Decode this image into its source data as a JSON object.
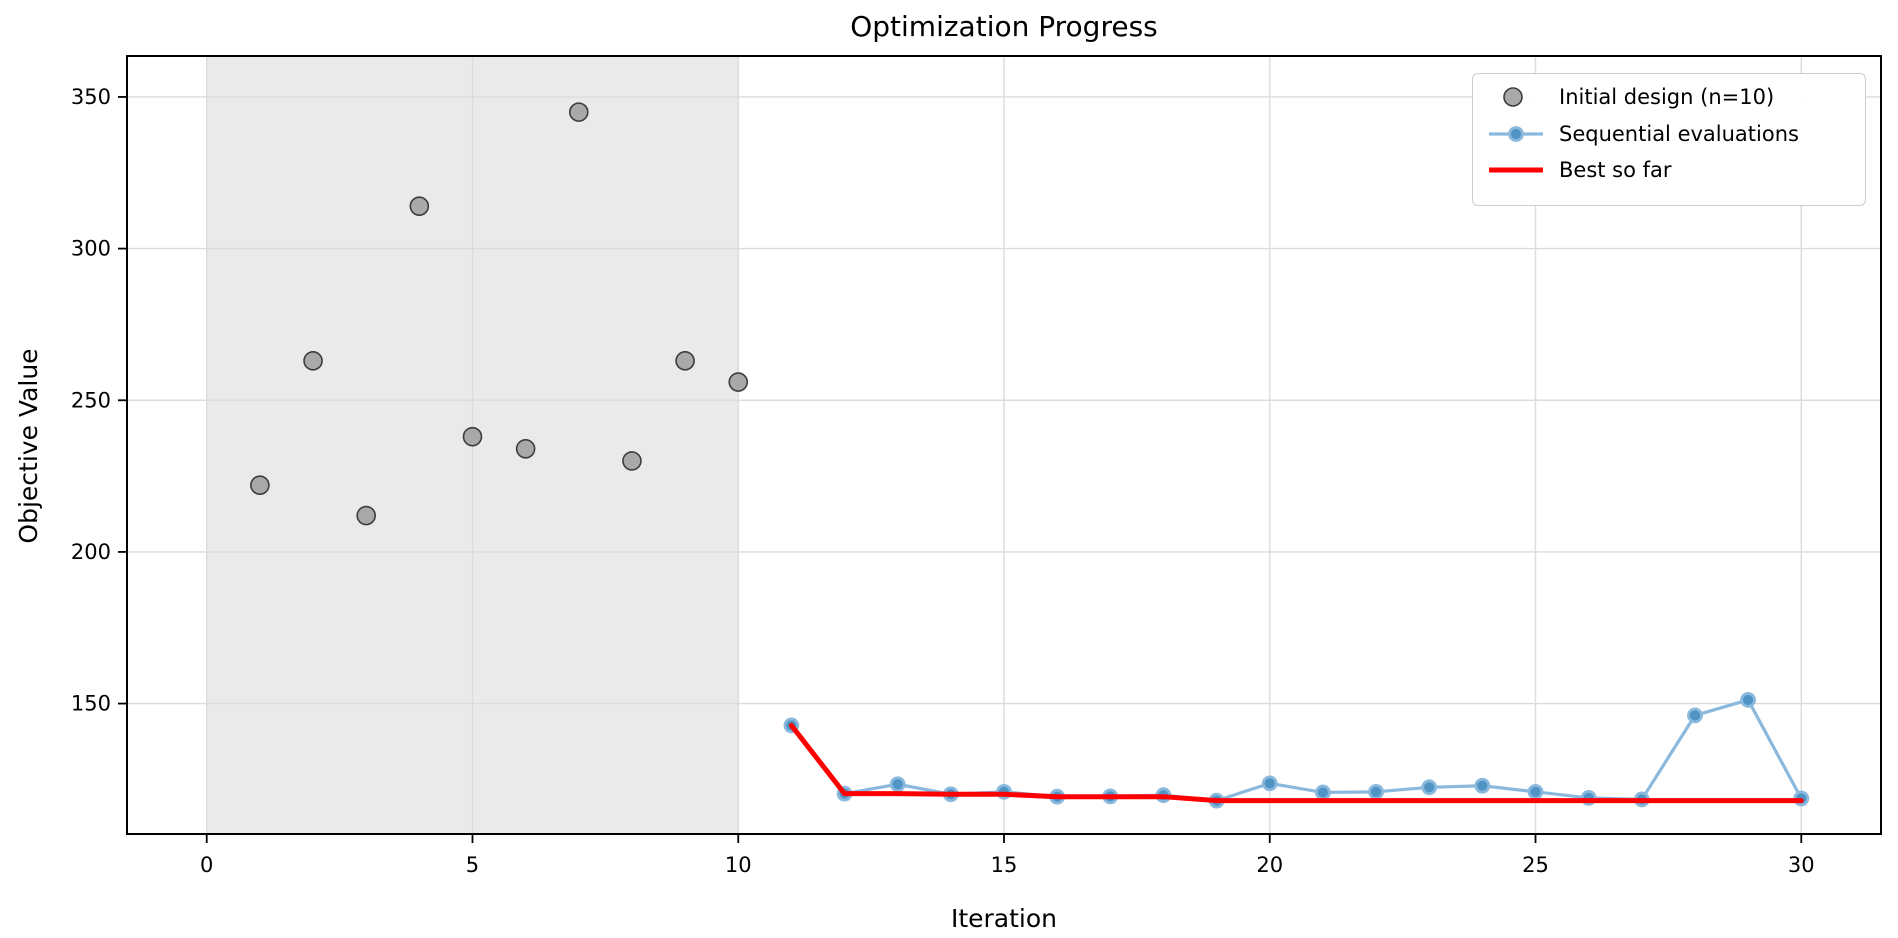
{
  "chart_data": {
    "type": "scatter",
    "title": "Optimization Progress",
    "xlabel": "Iteration",
    "ylabel": "Objective Value",
    "xlim": [
      -1.5,
      31.5
    ],
    "ylim": [
      107,
      363.5
    ],
    "xticks": [
      0,
      5,
      10,
      15,
      20,
      25,
      30
    ],
    "yticks": [
      150,
      200,
      250,
      300,
      350
    ],
    "grid": true,
    "grid_color": "#dcdcdc",
    "spine_color": "#000000",
    "background": "#ffffff",
    "shaded_region": {
      "x0": 0,
      "x1": 10,
      "color": "#eaeaea"
    },
    "series": [
      {
        "name": "Initial design (n=10)",
        "type": "scatter",
        "x": [
          1,
          2,
          3,
          4,
          5,
          6,
          7,
          8,
          9,
          10
        ],
        "y": [
          222,
          263,
          212,
          314,
          238,
          234,
          345,
          230,
          263,
          256
        ],
        "marker_fill": "#a9a9a9",
        "marker_edge": "#3d3d3d",
        "marker_edge_width": 1.6,
        "marker_radius": 9
      },
      {
        "name": "Sequential evaluations",
        "type": "line",
        "marker": true,
        "x": [
          11,
          12,
          13,
          14,
          15,
          16,
          17,
          18,
          19,
          20,
          21,
          22,
          23,
          24,
          25,
          26,
          27,
          28,
          29,
          30
        ],
        "y": [
          142.8,
          120.3,
          123.4,
          120.1,
          120.9,
          119.3,
          119.4,
          119.8,
          118.0,
          123.7,
          120.7,
          120.9,
          122.4,
          122.9,
          120.9,
          118.9,
          118.4,
          146.1,
          151.2,
          118.7
        ],
        "color": "#8ab9dd",
        "line_width": 3.2,
        "marker_fill": "#4f94c5",
        "marker_edge": "#8ab9dd",
        "marker_edge_width": 2.8,
        "marker_radius": 6.5
      },
      {
        "name": "Best so far",
        "type": "line",
        "marker": false,
        "x": [
          11,
          12,
          13,
          14,
          15,
          16,
          17,
          18,
          19,
          20,
          21,
          22,
          23,
          24,
          25,
          26,
          27,
          28,
          29,
          30
        ],
        "y": [
          142.8,
          120.3,
          120.3,
          120.1,
          120.1,
          119.3,
          119.3,
          119.3,
          118.0,
          118.0,
          118.0,
          118.0,
          118.0,
          118.0,
          118.0,
          118.0,
          118.0,
          118.0,
          118.0,
          118.0
        ],
        "color": "#ff0000",
        "line_width": 5
      }
    ],
    "legend": {
      "position": "upper right"
    }
  }
}
